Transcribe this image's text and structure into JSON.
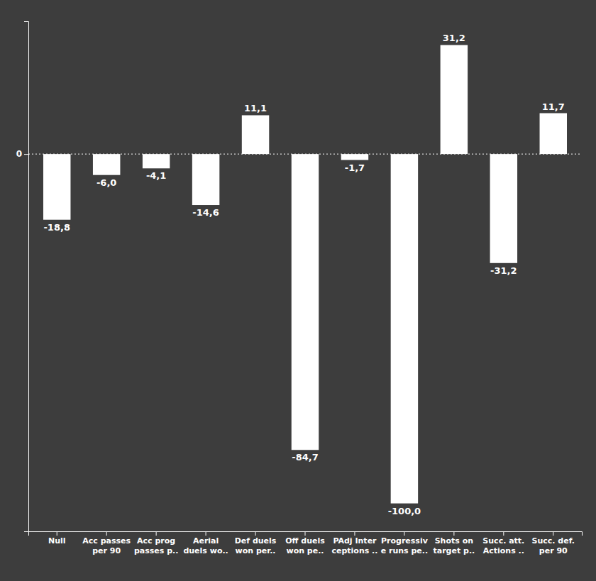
{
  "chart_data": {
    "type": "bar",
    "categories": [
      "Null",
      "Acc passes\nper 90",
      "Acc prog\npasses p..",
      "Aerial\nduels wo..",
      "Def duels\nwon per..",
      "Off duels\nwon pe..",
      "PAdj Inter\nceptions ..",
      "Progressiv\ne runs pe..",
      "Shots on\ntarget p..",
      "Succ. att.\nActions ..",
      "Succ. def.\nper 90"
    ],
    "values": [
      -18.8,
      -6.0,
      -4.1,
      -14.6,
      11.1,
      -84.7,
      -1.7,
      -100.0,
      31.2,
      -31.2,
      11.7
    ],
    "value_labels": [
      "-18,8",
      "-6,0",
      "-4,1",
      "-14,6",
      "11,1",
      "-84,7",
      "-1,7",
      "-100,0",
      "31,2",
      "-31,2",
      "11,7"
    ],
    "data_labels": true,
    "color": "#ffffff",
    "ylim": [
      -108,
      38
    ],
    "yticks": [
      0
    ],
    "grid": true
  }
}
